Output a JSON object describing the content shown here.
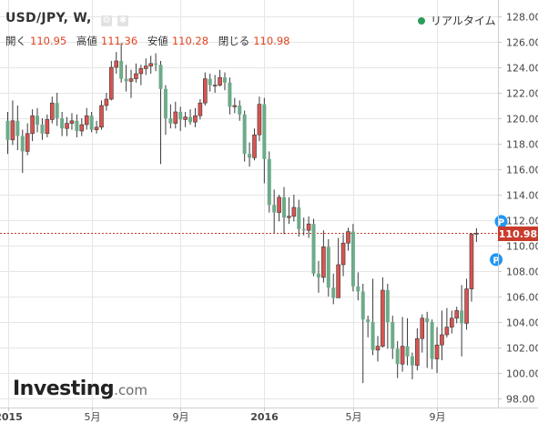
{
  "header": {
    "symbol_title": "USD/JPY, W,",
    "realtime_label": "リアルタイム",
    "ohlc": {
      "open_label": "開く",
      "open_value": "110.95",
      "high_label": "高値",
      "high_value": "111.36",
      "low_label": "安値",
      "low_value": "110.28",
      "close_label": "閉じる",
      "close_value": "110.98"
    }
  },
  "logo": {
    "brand": "Investing",
    "domain": ".com"
  },
  "colors": {
    "up": "#d9534f",
    "down": "#6dab89",
    "price_line": "#c93c2c",
    "marker": "#2196f3",
    "grid": "#e6e6e6"
  },
  "icons": [
    "gear-icon",
    "settings-icon"
  ],
  "chart_data": {
    "type": "candlestick",
    "instrument": "USD/JPY",
    "interval": "W",
    "ylim": [
      97.5,
      128.5
    ],
    "y_ticks": [
      "128.00",
      "126.00",
      "124.00",
      "122.00",
      "120.00",
      "118.00",
      "116.00",
      "114.00",
      "112.00",
      "110.00",
      "108.00",
      "106.00",
      "104.00",
      "102.00",
      "100.00",
      "98.00"
    ],
    "x_ticks": [
      {
        "label": "2015",
        "week": 0
      },
      {
        "label": "5月",
        "week": 17
      },
      {
        "label": "9月",
        "week": 35
      },
      {
        "label": "2016",
        "week": 52
      },
      {
        "label": "5月",
        "week": 70
      },
      {
        "label": "9月",
        "week": 87
      }
    ],
    "last_price": "110.98",
    "price_line": 110.98,
    "markers": [
      {
        "label": "P",
        "week": 100,
        "y": 111.9
      },
      {
        "label": "P",
        "week": 99,
        "y": 108.9
      }
    ],
    "candles": [
      [
        119.8,
        118.3,
        120.5,
        117.2
      ],
      [
        118.3,
        119.8,
        121.4,
        117.9
      ],
      [
        119.8,
        118.6,
        121.0,
        117.5
      ],
      [
        118.6,
        117.4,
        119.1,
        115.7
      ],
      [
        117.4,
        118.8,
        119.6,
        117.1
      ],
      [
        118.8,
        120.2,
        120.7,
        118.2
      ],
      [
        120.2,
        119.5,
        120.8,
        118.9
      ],
      [
        119.5,
        118.8,
        120.0,
        118.3
      ],
      [
        118.8,
        119.9,
        120.3,
        118.5
      ],
      [
        119.9,
        121.2,
        121.7,
        119.6
      ],
      [
        121.2,
        120.0,
        122.0,
        119.4
      ],
      [
        120.0,
        119.2,
        120.5,
        118.6
      ],
      [
        119.2,
        119.6,
        120.1,
        118.6
      ],
      [
        119.6,
        119.8,
        120.4,
        119.1
      ],
      [
        119.8,
        119.0,
        120.3,
        118.5
      ],
      [
        119.0,
        119.5,
        120.0,
        118.6
      ],
      [
        119.5,
        120.2,
        120.8,
        119.1
      ],
      [
        120.2,
        119.1,
        120.5,
        118.9
      ],
      [
        119.1,
        119.3,
        119.8,
        118.8
      ],
      [
        119.3,
        121.0,
        121.4,
        119.1
      ],
      [
        121.0,
        121.5,
        122.0,
        120.6
      ],
      [
        121.5,
        124.0,
        124.5,
        121.4
      ],
      [
        124.0,
        124.5,
        125.2,
        123.5
      ],
      [
        124.5,
        123.1,
        125.9,
        122.8
      ],
      [
        123.1,
        122.9,
        124.2,
        122.1
      ],
      [
        122.9,
        123.1,
        123.8,
        121.6
      ],
      [
        123.1,
        123.5,
        124.3,
        122.8
      ],
      [
        123.5,
        123.9,
        124.2,
        122.6
      ],
      [
        123.9,
        124.1,
        124.7,
        123.4
      ],
      [
        124.1,
        124.3,
        124.9,
        123.5
      ],
      [
        124.3,
        124.2,
        125.1,
        123.7
      ],
      [
        124.2,
        122.3,
        124.5,
        116.4
      ],
      [
        122.3,
        120.0,
        122.6,
        118.7
      ],
      [
        120.0,
        119.6,
        121.1,
        119.2
      ],
      [
        119.6,
        120.5,
        121.3,
        119.2
      ],
      [
        120.5,
        119.9,
        120.9,
        119.0
      ],
      [
        119.9,
        120.1,
        120.5,
        119.3
      ],
      [
        120.1,
        119.7,
        120.7,
        119.5
      ],
      [
        119.7,
        120.2,
        120.8,
        119.3
      ],
      [
        120.2,
        121.2,
        121.5,
        119.9
      ],
      [
        121.2,
        123.1,
        123.6,
        121.0
      ],
      [
        123.1,
        122.6,
        123.5,
        122.1
      ],
      [
        122.6,
        122.6,
        123.4,
        122.0
      ],
      [
        122.6,
        123.2,
        123.8,
        122.5
      ],
      [
        123.2,
        122.8,
        123.6,
        122.2
      ],
      [
        122.8,
        120.9,
        123.2,
        120.3
      ],
      [
        120.9,
        121.0,
        121.6,
        120.4
      ],
      [
        121.0,
        120.3,
        121.4,
        119.8
      ],
      [
        120.3,
        117.2,
        120.6,
        116.6
      ],
      [
        117.2,
        116.9,
        118.1,
        116.2
      ],
      [
        116.9,
        118.7,
        119.2,
        116.7
      ],
      [
        118.7,
        121.1,
        121.7,
        118.2
      ],
      [
        121.1,
        116.8,
        121.6,
        114.9
      ],
      [
        116.8,
        113.2,
        117.4,
        112.6
      ],
      [
        113.2,
        112.6,
        114.4,
        111.0
      ],
      [
        112.6,
        113.8,
        114.0,
        111.9
      ],
      [
        113.8,
        112.2,
        114.6,
        110.9
      ],
      [
        112.2,
        112.3,
        113.8,
        111.7
      ],
      [
        112.3,
        113.0,
        114.0,
        111.9
      ],
      [
        113.0,
        111.3,
        113.6,
        110.7
      ],
      [
        111.3,
        111.2,
        112.2,
        110.8
      ],
      [
        111.2,
        111.7,
        112.3,
        110.6
      ],
      [
        111.7,
        107.8,
        112.1,
        107.6
      ],
      [
        107.8,
        107.5,
        108.8,
        106.3
      ],
      [
        107.5,
        109.9,
        111.2,
        107.1
      ],
      [
        109.9,
        106.7,
        110.5,
        106.0
      ],
      [
        106.7,
        105.9,
        107.8,
        105.4
      ],
      [
        105.9,
        108.5,
        110.6,
        108.3
      ],
      [
        108.5,
        110.2,
        110.9,
        107.6
      ],
      [
        110.2,
        111.1,
        111.4,
        109.6
      ],
      [
        111.1,
        106.8,
        111.7,
        106.4
      ],
      [
        106.8,
        106.4,
        107.9,
        105.7
      ],
      [
        106.4,
        104.2,
        107.0,
        99.2
      ],
      [
        104.2,
        104.0,
        104.5,
        102.8
      ],
      [
        104.0,
        101.8,
        107.4,
        101.4
      ],
      [
        101.8,
        102.1,
        102.9,
        100.9
      ],
      [
        102.1,
        106.5,
        107.5,
        102.0
      ],
      [
        106.5,
        104.0,
        107.0,
        101.9
      ],
      [
        104.0,
        101.9,
        104.5,
        101.1
      ],
      [
        101.9,
        100.7,
        102.5,
        99.6
      ],
      [
        100.7,
        102.1,
        104.4,
        100.1
      ],
      [
        102.1,
        101.3,
        104.3,
        100.6
      ],
      [
        101.3,
        100.6,
        101.6,
        99.5
      ],
      [
        100.6,
        102.7,
        103.5,
        100.2
      ],
      [
        102.7,
        104.3,
        104.6,
        101.6
      ],
      [
        104.3,
        104.0,
        104.8,
        100.4
      ],
      [
        104.0,
        101.1,
        104.2,
        100.3
      ],
      [
        101.1,
        102.2,
        103.6,
        100.0
      ],
      [
        102.2,
        103.0,
        104.9,
        101.0
      ],
      [
        103.0,
        103.6,
        105.1,
        102.8
      ],
      [
        103.6,
        104.3,
        104.9,
        103.1
      ],
      [
        104.3,
        104.9,
        105.2,
        103.9
      ],
      [
        104.9,
        103.9,
        106.9,
        101.3
      ],
      [
        103.9,
        106.6,
        107.4,
        103.4
      ],
      [
        106.6,
        110.9,
        111.0,
        105.6
      ],
      [
        110.9,
        110.98,
        111.36,
        110.28
      ]
    ]
  }
}
